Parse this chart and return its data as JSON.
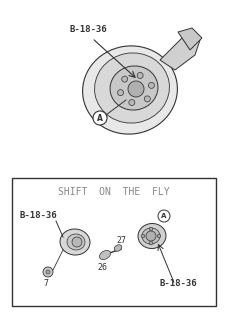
{
  "bg_color": "#f0f0f0",
  "white": "#ffffff",
  "dark": "#333333",
  "mid_gray": "#888888",
  "light_gray": "#cccccc",
  "top_label": "B-18-36",
  "circle_label_A": "A",
  "box_title": "SHIFT  ON  THE  FLY",
  "box_label_left": "B-18-36",
  "box_label_right": "B-18-36",
  "num_26": "26",
  "num_27": "27",
  "num_7": "7"
}
